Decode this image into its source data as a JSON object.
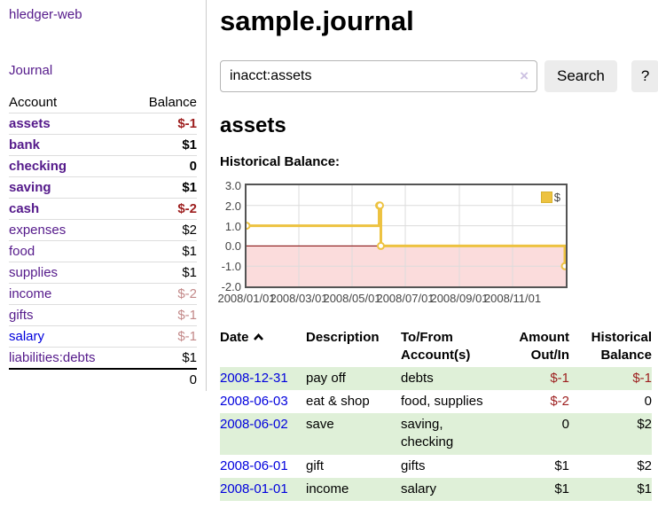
{
  "colors": {
    "link_purple": "#551a8b",
    "link_blue": "#0000dd",
    "negative_strong": "#9d1e1e",
    "negative_dim": "#c38989",
    "row_stripe_green": "#dff0d8",
    "button_bg": "#ececec",
    "chart_line_gold": "#edc240",
    "chart_negative_region": "#fbdcdc",
    "chart_zero_line": "#800000",
    "chart_border": "#545454",
    "chart_grid": "#dcdcdc"
  },
  "sidebar": {
    "brand": "hledger-web",
    "journal_link": "Journal",
    "accounts": {
      "header_account": "Account",
      "header_balance": "Balance",
      "rows": [
        {
          "name": "assets",
          "balance": "$-1"
        },
        {
          "name": "bank",
          "balance": "$1"
        },
        {
          "name": "checking",
          "balance": "0"
        },
        {
          "name": "saving",
          "balance": "$1"
        },
        {
          "name": "cash",
          "balance": "$-2"
        },
        {
          "name": "expenses",
          "balance": "$2"
        },
        {
          "name": "food",
          "balance": "$1"
        },
        {
          "name": "supplies",
          "balance": "$1"
        },
        {
          "name": "income",
          "balance": "$-2"
        },
        {
          "name": "gifts",
          "balance": "$-1"
        },
        {
          "name": "salary",
          "balance": "$-1"
        },
        {
          "name": "liabilities:debts",
          "balance": "$1"
        }
      ],
      "total": "0"
    }
  },
  "main": {
    "title": "sample.journal",
    "search": {
      "value": "inacct:assets",
      "clear_icon": "×",
      "search_button": "Search",
      "help_button": "?"
    },
    "account_heading": "assets",
    "chart_heading": "Historical Balance:"
  },
  "chart_data": {
    "type": "line",
    "style": "step",
    "title": "Historical Balance:",
    "xlim": [
      "2008-01-01",
      "2009-01-01"
    ],
    "ylim": [
      -2,
      3
    ],
    "grid": true,
    "grid_color": "#dcdcdc",
    "negative_region_color": "#fbdcdc",
    "zero_line_color": "#800000",
    "legend": {
      "label": "$",
      "position": "top-right"
    },
    "yticks": [
      {
        "value": 3,
        "label": "3.0"
      },
      {
        "value": 2,
        "label": "2.0"
      },
      {
        "value": 1,
        "label": "1.0"
      },
      {
        "value": 0,
        "label": "0.0"
      },
      {
        "value": -1,
        "label": "-1.0"
      },
      {
        "value": -2,
        "label": "-2.0"
      }
    ],
    "xticks": [
      {
        "date": "2008-01-01",
        "label": "2008/01/01"
      },
      {
        "date": "2008-03-01",
        "label": "2008/03/01"
      },
      {
        "date": "2008-05-01",
        "label": "2008/05/01"
      },
      {
        "date": "2008-07-01",
        "label": "2008/07/01"
      },
      {
        "date": "2008-09-01",
        "label": "2008/09/01"
      },
      {
        "date": "2008-11-01",
        "label": "2008/11/01"
      }
    ],
    "series": [
      {
        "name": "$",
        "color": "#edc240",
        "points": [
          [
            "2008-01-01",
            1
          ],
          [
            "2008-06-01",
            2
          ],
          [
            "2008-06-02",
            2
          ],
          [
            "2008-06-03",
            0
          ],
          [
            "2008-12-31",
            -1
          ]
        ]
      }
    ]
  },
  "register": {
    "headers": {
      "date": "Date",
      "description": "Description",
      "accounts": "To/From Account(s)",
      "amount": "Amount Out/In",
      "balance": "Historical Balance"
    },
    "rows": [
      {
        "date": "2008-12-31",
        "description": "pay off",
        "accounts": "debts",
        "amount": "$-1",
        "balance": "$-1"
      },
      {
        "date": "2008-06-03",
        "description": "eat & shop",
        "accounts": "food, supplies",
        "amount": "$-2",
        "balance": "0"
      },
      {
        "date": "2008-06-02",
        "description": "save",
        "accounts": "saving, checking",
        "amount": "0",
        "balance": "$2"
      },
      {
        "date": "2008-06-01",
        "description": "gift",
        "accounts": "gifts",
        "amount": "$1",
        "balance": "$2"
      },
      {
        "date": "2008-01-01",
        "description": "income",
        "accounts": "salary",
        "amount": "$1",
        "balance": "$1"
      }
    ]
  }
}
